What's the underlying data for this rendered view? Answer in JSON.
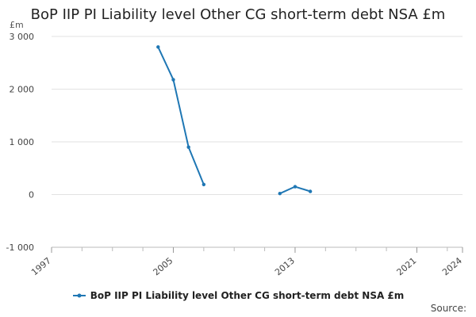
{
  "chart_data": {
    "type": "line",
    "title": "BoP IIP PI Liability level Other CG short-term debt NSA £m",
    "unit_label": "£m",
    "ylim": [
      -1000,
      3000
    ],
    "y_ticks": [
      -1000,
      0,
      1000,
      2000,
      3000
    ],
    "y_tick_labels": [
      "-1 000",
      "0",
      "1 000",
      "2 000",
      "3 000"
    ],
    "xlim": [
      1997,
      2024
    ],
    "x_ticks": [
      1997,
      2005,
      2013,
      2021,
      2024
    ],
    "x_tick_labels": [
      "1997",
      "2005",
      "2013",
      "2021",
      "2024"
    ],
    "grid": true,
    "legend_position": "bottom",
    "series": [
      {
        "name": "BoP IIP PI Liability level Other CG short-term debt NSA £m",
        "color": "#1f77b4",
        "segments": [
          [
            {
              "x": 2004,
              "y": 2800
            },
            {
              "x": 2005,
              "y": 2180
            },
            {
              "x": 2006,
              "y": 900
            },
            {
              "x": 2007,
              "y": 190
            }
          ],
          [
            {
              "x": 2012,
              "y": 20
            },
            {
              "x": 2013,
              "y": 150
            },
            {
              "x": 2014,
              "y": 60
            }
          ]
        ]
      }
    ],
    "source_label": "Source:"
  }
}
